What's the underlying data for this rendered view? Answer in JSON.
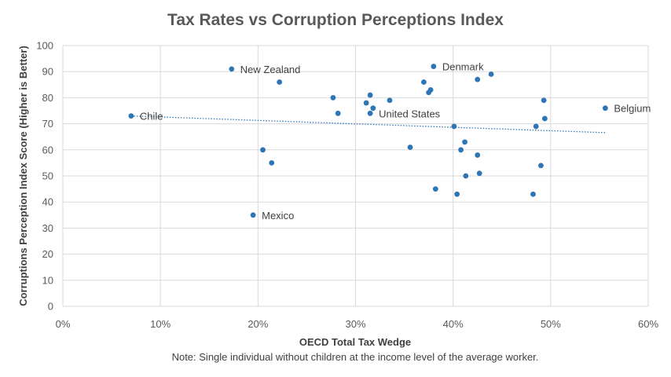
{
  "chart_data": {
    "type": "scatter",
    "title": "Tax Rates vs Corruption Perceptions Index",
    "xlabel": "OECD Total Tax Wedge",
    "ylabel": "Corruptions Perception Index Score (Higher is Better)",
    "note": "Note: Single individual without  children at the  income level of the average worker.",
    "xlim": [
      0,
      60
    ],
    "ylim": [
      0,
      100
    ],
    "x_ticks": [
      0,
      10,
      20,
      30,
      40,
      50,
      60
    ],
    "x_tick_labels": [
      "0%",
      "10%",
      "20%",
      "30%",
      "40%",
      "50%",
      "60%"
    ],
    "y_ticks": [
      0,
      10,
      20,
      30,
      40,
      50,
      60,
      70,
      80,
      90,
      100
    ],
    "y_tick_labels": [
      "0",
      "10",
      "20",
      "30",
      "40",
      "50",
      "60",
      "70",
      "80",
      "90",
      "100"
    ],
    "grid": true,
    "legend": "none",
    "marker_color": "#2e75b6",
    "trendline": {
      "type": "linear",
      "x": [
        7.0,
        55.6
      ],
      "y": [
        73.0,
        66.6
      ],
      "color": "#2e75b6",
      "style": "dotted"
    },
    "points": [
      {
        "x": 7.0,
        "y": 73,
        "label": "Chile"
      },
      {
        "x": 17.3,
        "y": 91,
        "label": "New Zealand"
      },
      {
        "x": 19.5,
        "y": 35,
        "label": "Mexico"
      },
      {
        "x": 20.5,
        "y": 60,
        "label": ""
      },
      {
        "x": 21.4,
        "y": 55,
        "label": ""
      },
      {
        "x": 22.2,
        "y": 86,
        "label": ""
      },
      {
        "x": 27.7,
        "y": 80,
        "label": ""
      },
      {
        "x": 28.2,
        "y": 74,
        "label": ""
      },
      {
        "x": 31.1,
        "y": 78,
        "label": ""
      },
      {
        "x": 31.5,
        "y": 81,
        "label": ""
      },
      {
        "x": 31.5,
        "y": 74,
        "label": "United States"
      },
      {
        "x": 31.8,
        "y": 76,
        "label": ""
      },
      {
        "x": 33.5,
        "y": 79,
        "label": ""
      },
      {
        "x": 35.6,
        "y": 61,
        "label": ""
      },
      {
        "x": 37.0,
        "y": 86,
        "label": ""
      },
      {
        "x": 37.5,
        "y": 82,
        "label": ""
      },
      {
        "x": 37.7,
        "y": 83,
        "label": ""
      },
      {
        "x": 38.0,
        "y": 92,
        "label": "Denmark"
      },
      {
        "x": 38.2,
        "y": 45,
        "label": ""
      },
      {
        "x": 40.1,
        "y": 69,
        "label": ""
      },
      {
        "x": 40.4,
        "y": 43,
        "label": ""
      },
      {
        "x": 40.8,
        "y": 60,
        "label": ""
      },
      {
        "x": 41.2,
        "y": 63,
        "label": ""
      },
      {
        "x": 41.3,
        "y": 50,
        "label": ""
      },
      {
        "x": 42.5,
        "y": 58,
        "label": ""
      },
      {
        "x": 42.5,
        "y": 87,
        "label": ""
      },
      {
        "x": 42.7,
        "y": 51,
        "label": ""
      },
      {
        "x": 43.9,
        "y": 89,
        "label": ""
      },
      {
        "x": 48.2,
        "y": 43,
        "label": ""
      },
      {
        "x": 48.5,
        "y": 69,
        "label": ""
      },
      {
        "x": 49.0,
        "y": 54,
        "label": ""
      },
      {
        "x": 49.3,
        "y": 79,
        "label": ""
      },
      {
        "x": 49.4,
        "y": 72,
        "label": ""
      },
      {
        "x": 55.6,
        "y": 76,
        "label": "Belgium"
      }
    ]
  }
}
